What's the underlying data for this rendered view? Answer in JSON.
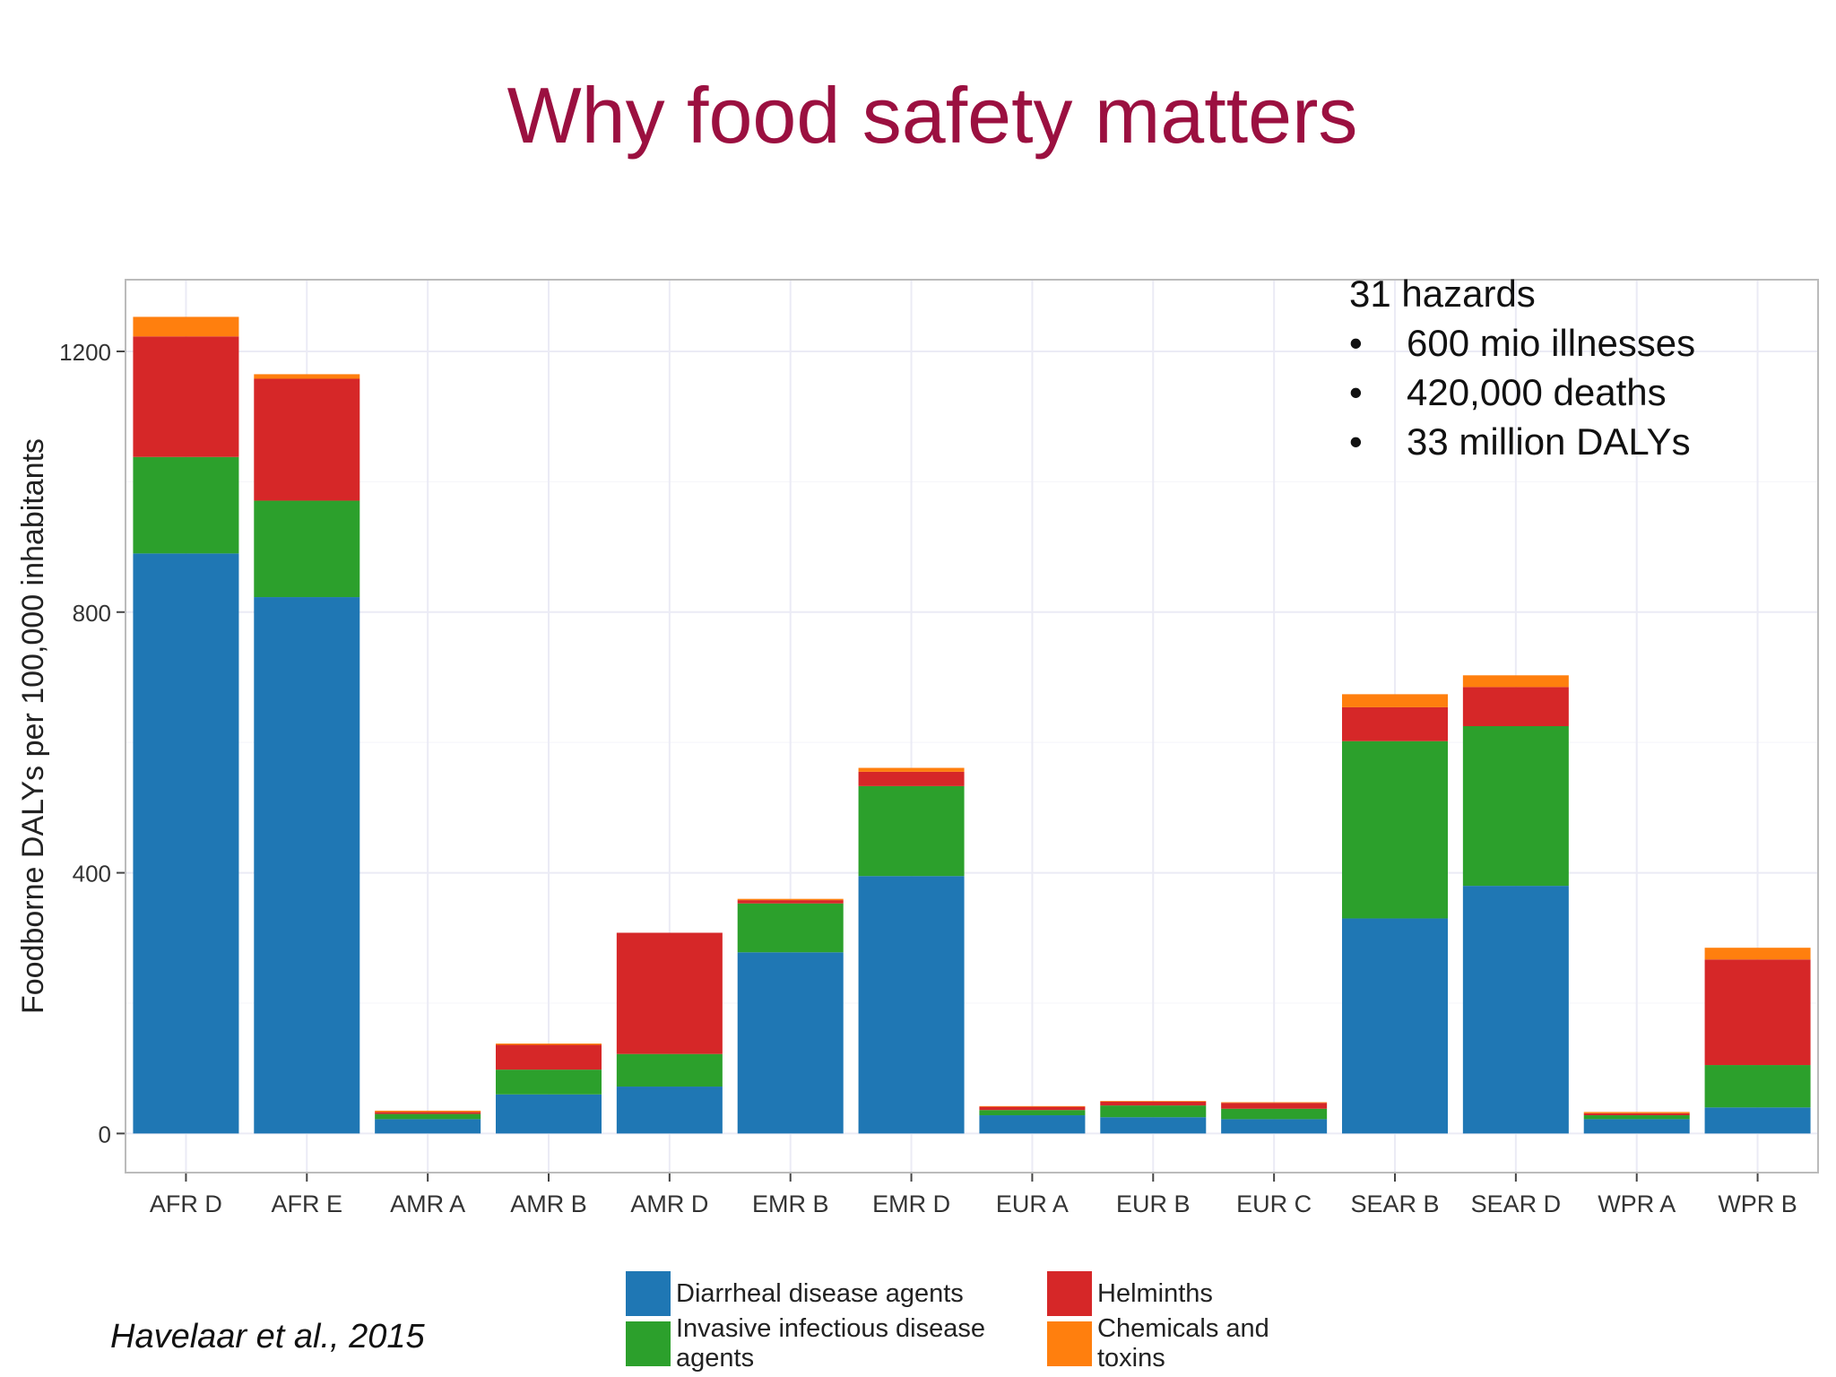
{
  "slide": {
    "title": "Why food safety matters",
    "citation": "Havelaar et al., 2015"
  },
  "stats": {
    "heading": "31 hazards",
    "bullets": [
      "600 mio illnesses",
      "420,000 deaths",
      "33 million DALYs"
    ],
    "bullet_char": "•"
  },
  "legend": [
    {
      "label": "Diarrheal disease agents",
      "color": "#1f77b4"
    },
    {
      "label": "Helminths",
      "color": "#d62728"
    },
    {
      "label": "Invasive infectious disease agents",
      "color": "#2ca02c"
    },
    {
      "label": "Chemicals and toxins",
      "color": "#ff7f0e"
    }
  ],
  "chart_data": {
    "type": "bar",
    "stacked": true,
    "ylabel": "Foodborne DALYs per 100,000 inhabitants",
    "xlabel": "",
    "ylim": [
      -60,
      1310
    ],
    "yticks": [
      0,
      400,
      800,
      1200
    ],
    "grid": true,
    "categories": [
      "AFR D",
      "AFR E",
      "AMR A",
      "AMR B",
      "AMR D",
      "EMR B",
      "EMR D",
      "EUR A",
      "EUR B",
      "EUR C",
      "SEAR B",
      "SEAR D",
      "WPR A",
      "WPR B"
    ],
    "series": [
      {
        "name": "Diarrheal disease agents",
        "color": "#1f77b4",
        "values": [
          890,
          823,
          22,
          60,
          72,
          278,
          395,
          28,
          25,
          22,
          330,
          380,
          22,
          40
        ]
      },
      {
        "name": "Invasive infectious disease agents",
        "color": "#2ca02c",
        "values": [
          148,
          148,
          8,
          38,
          50,
          75,
          138,
          8,
          18,
          16,
          272,
          245,
          6,
          65
        ]
      },
      {
        "name": "Helminths",
        "color": "#d62728",
        "values": [
          185,
          187,
          3,
          38,
          186,
          5,
          22,
          5,
          6,
          9,
          52,
          60,
          3,
          162
        ]
      },
      {
        "name": "Chemicals and toxins",
        "color": "#ff7f0e",
        "values": [
          30,
          7,
          2,
          2,
          0,
          2,
          6,
          1,
          1,
          1,
          20,
          18,
          2,
          18
        ]
      }
    ]
  }
}
